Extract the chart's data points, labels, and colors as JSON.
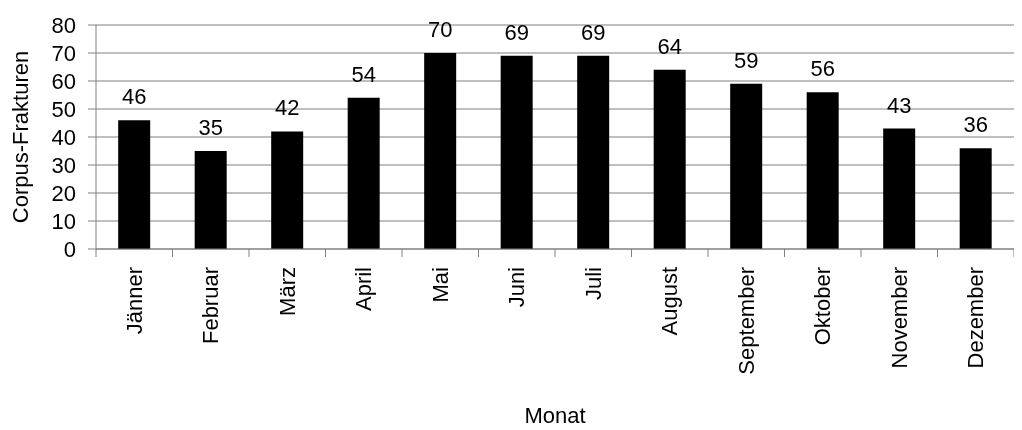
{
  "chart_data": {
    "type": "bar",
    "xlabel": "Monat",
    "ylabel": "Corpus-Frakturen",
    "categories": [
      "Jänner",
      "Februar",
      "März",
      "April",
      "Mai",
      "Juni",
      "Juli",
      "August",
      "September",
      "Oktober",
      "November",
      "Dezember"
    ],
    "values": [
      46,
      35,
      42,
      54,
      70,
      69,
      69,
      64,
      59,
      56,
      43,
      36
    ],
    "color": "#000000",
    "ylim": [
      0,
      80
    ],
    "yticks": [
      0,
      10,
      20,
      30,
      40,
      50,
      60,
      70,
      80
    ],
    "grid": "y",
    "data_labels": true
  }
}
